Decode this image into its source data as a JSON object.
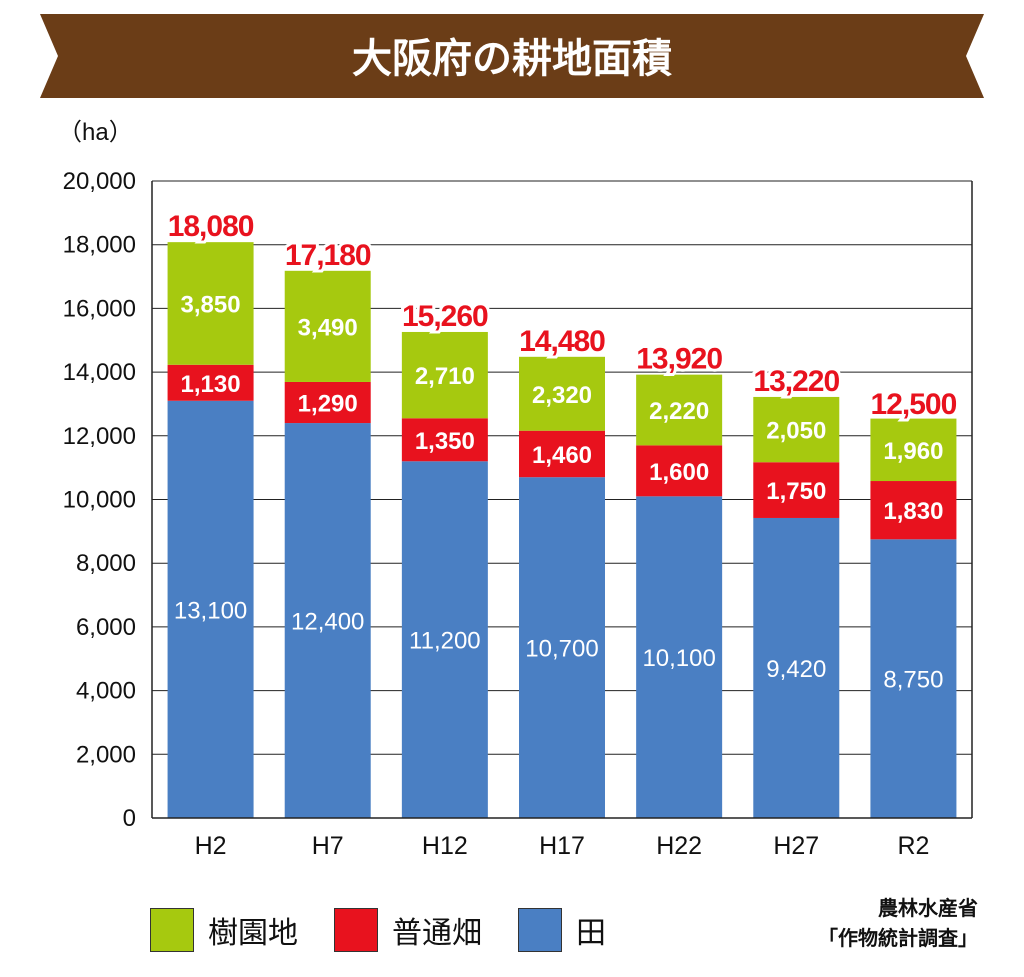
{
  "title": "大阪府の耕地面積",
  "unit": "（ha）",
  "source_line1": "農林水産省",
  "source_line2": "「作物統計調査」",
  "colors": {
    "banner": "#6b3d17",
    "rice": "#4a7fc3",
    "field": "#e8121e",
    "orchard": "#a6c90f",
    "grid": "#222222",
    "total": "#e8121e"
  },
  "legend": [
    {
      "label": "樹園地",
      "color": "#a6c90f"
    },
    {
      "label": "普通畑",
      "color": "#e8121e"
    },
    {
      "label": "田",
      "color": "#4a7fc3"
    }
  ],
  "chart_data": {
    "type": "bar",
    "stacked": true,
    "title": "大阪府の耕地面積",
    "ylabel": "（ha）",
    "ylim": [
      0,
      20000
    ],
    "yticks": [
      0,
      2000,
      4000,
      6000,
      8000,
      10000,
      12000,
      14000,
      16000,
      18000,
      20000
    ],
    "ytick_labels": [
      "0",
      "2,000",
      "4,000",
      "6,000",
      "8,000",
      "10,000",
      "12,000",
      "14,000",
      "16,000",
      "18,000",
      "20,000"
    ],
    "categories": [
      "H2",
      "H7",
      "H12",
      "H17",
      "H22",
      "H27",
      "R2"
    ],
    "series": [
      {
        "name": "田",
        "values": [
          13100,
          12400,
          11200,
          10700,
          10100,
          9420,
          8750
        ],
        "labels": [
          "13,100",
          "12,400",
          "11,200",
          "10,700",
          "10,100",
          "9,420",
          "8,750"
        ]
      },
      {
        "name": "普通畑",
        "values": [
          1130,
          1290,
          1350,
          1460,
          1600,
          1750,
          1830
        ],
        "labels": [
          "1,130",
          "1,290",
          "1,350",
          "1,460",
          "1,600",
          "1,750",
          "1,830"
        ]
      },
      {
        "name": "樹園地",
        "values": [
          3850,
          3490,
          2710,
          2320,
          2220,
          2050,
          1960
        ],
        "labels": [
          "3,850",
          "3,490",
          "2,710",
          "2,320",
          "2,220",
          "2,050",
          "1,960"
        ]
      }
    ],
    "totals": [
      18080,
      17180,
      15260,
      14480,
      13920,
      13220,
      12500
    ],
    "total_labels": [
      "18,080",
      "17,180",
      "15,260",
      "14,480",
      "13,920",
      "13,220",
      "12,500"
    ],
    "legend_position": "bottom-left",
    "grid": true
  }
}
